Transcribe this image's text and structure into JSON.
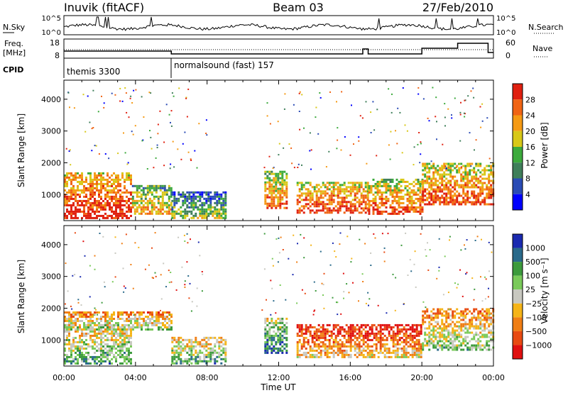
{
  "header": {
    "station": "Inuvik (fitACF)",
    "beam": "Beam 03",
    "date": "27/Feb/2010"
  },
  "left_labels": {
    "nsky": "N.Sky",
    "freq_line1": "Freq.",
    "freq_line2": "[MHz]",
    "cpid": "CPID"
  },
  "right_labels": {
    "nsearch": "N.Search",
    "nave": "Nave"
  },
  "ticks": {
    "noise_top": "10^5",
    "noise_bottom": "10^0",
    "freq_top": "18",
    "freq_bottom": "8",
    "nave_top": "60",
    "nave_bottom": "0"
  },
  "cpid_modes": [
    {
      "label": "themis 3300",
      "start_hour": 0
    },
    {
      "label": "normalsound (fast) 157",
      "start_hour": 6
    }
  ],
  "colors": {
    "power": [
      "#0000ff",
      "#2a4bb5",
      "#3f7f5a",
      "#3caa3c",
      "#d8c818",
      "#f59a14",
      "#f06414",
      "#e02010"
    ],
    "velocity": [
      "#e01010",
      "#e84a12",
      "#f07e14",
      "#f5b418",
      "#c8c8c0",
      "#7aca5a",
      "#3c9a3c",
      "#2a6a8a",
      "#1a2ab0"
    ]
  },
  "chart_data": [
    {
      "type": "heatmap",
      "name": "Power",
      "xlabel": "",
      "ylabel": "Slant Range [km]",
      "x_ticks": [
        "00:00",
        "04:00",
        "08:00",
        "12:00",
        "16:00",
        "20:00",
        "00:00"
      ],
      "x_range_hours": [
        0,
        24
      ],
      "y_range": [
        180,
        4600
      ],
      "y_ticks": [
        1000,
        2000,
        3000,
        4000
      ],
      "colorbar": {
        "label": "Power [dB]",
        "ticks": [
          "4",
          "8",
          "12",
          "16",
          "20",
          "24",
          "28"
        ],
        "range": [
          0,
          30
        ]
      },
      "regions": [
        {
          "t0": 0.0,
          "t1": 3.8,
          "r0": 250,
          "r1": 1700,
          "level": 0.82
        },
        {
          "t0": 3.8,
          "t1": 6.0,
          "r0": 400,
          "r1": 1300,
          "level": 0.55
        },
        {
          "t0": 6.0,
          "t1": 9.0,
          "r0": 250,
          "r1": 1100,
          "level": 0.35
        },
        {
          "t0": 11.2,
          "t1": 12.4,
          "r0": 600,
          "r1": 1750,
          "level": 0.65
        },
        {
          "t0": 13.0,
          "t1": 17.0,
          "r0": 450,
          "r1": 1400,
          "level": 0.75
        },
        {
          "t0": 17.0,
          "t1": 20.0,
          "r0": 400,
          "r1": 1500,
          "level": 0.7
        },
        {
          "t0": 20.0,
          "t1": 24.0,
          "r0": 700,
          "r1": 2000,
          "level": 0.72
        }
      ]
    },
    {
      "type": "heatmap",
      "name": "Velocity",
      "xlabel": "Time UT",
      "ylabel": "Slant Range [km]",
      "x_ticks": [
        "00:00",
        "04:00",
        "08:00",
        "12:00",
        "16:00",
        "20:00",
        "00:00"
      ],
      "x_range_hours": [
        0,
        24
      ],
      "y_range": [
        180,
        4600
      ],
      "y_ticks": [
        1000,
        2000,
        3000,
        4000
      ],
      "colorbar": {
        "label": "Velocity [m s⁻¹]",
        "ticks": [
          "1000",
          "500",
          "100",
          "25",
          "−25",
          "−100",
          "−500",
          "−1000"
        ]
      },
      "regions": [
        {
          "t0": 0.0,
          "t1": 3.8,
          "r0": 250,
          "r1": 1500,
          "level": 0.55
        },
        {
          "t0": 0.0,
          "t1": 6.0,
          "r0": 1300,
          "r1": 1900,
          "level": 0.45
        },
        {
          "t0": 6.0,
          "t1": 9.0,
          "r0": 250,
          "r1": 1100,
          "level": 0.55
        },
        {
          "t0": 11.2,
          "t1": 12.4,
          "r0": 600,
          "r1": 1700,
          "level": 0.7
        },
        {
          "t0": 13.0,
          "t1": 20.0,
          "r0": 450,
          "r1": 1500,
          "level": 0.25
        },
        {
          "t0": 20.0,
          "t1": 24.0,
          "r0": 700,
          "r1": 2000,
          "level": 0.45
        }
      ]
    }
  ]
}
